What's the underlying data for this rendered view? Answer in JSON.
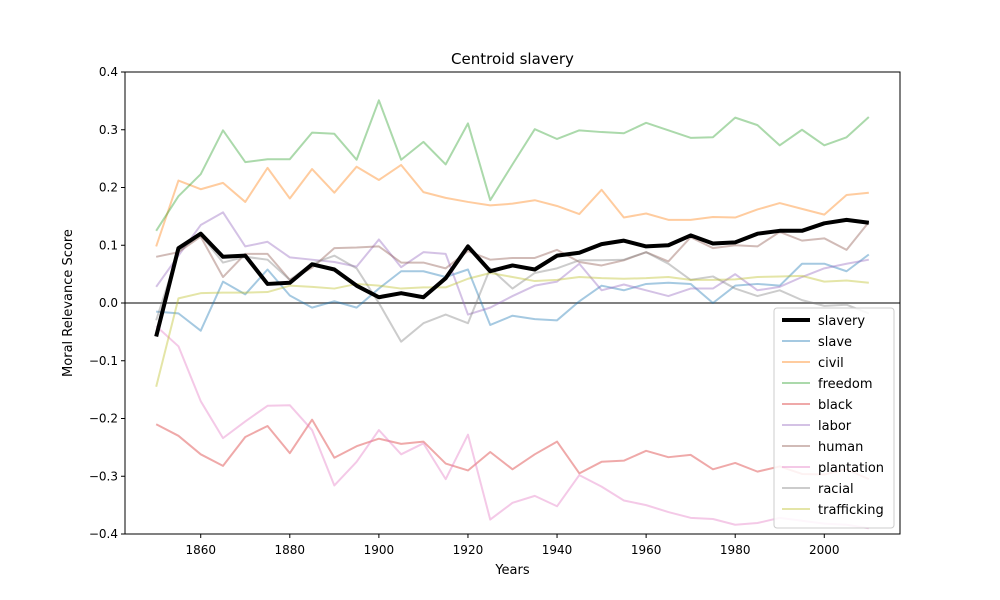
{
  "chart_data": {
    "type": "line",
    "title": "Centroid slavery",
    "xlabel": "Years",
    "ylabel": "Moral Relevance Score",
    "xlim": [
      1843,
      2017
    ],
    "ylim": [
      -0.4,
      0.4
    ],
    "xticks": [
      1860,
      1880,
      1900,
      1920,
      1940,
      1960,
      1980,
      2000
    ],
    "yticks": [
      -0.4,
      -0.3,
      -0.2,
      -0.1,
      0.0,
      0.1,
      0.2,
      0.3,
      0.4
    ],
    "ytick_labels": [
      "−0.4",
      "−0.3",
      "−0.2",
      "−0.1",
      "0.0",
      "0.1",
      "0.2",
      "0.3",
      "0.4"
    ],
    "grid": false,
    "legend_position": "lower-right",
    "zero_line": {
      "y": 0,
      "color": "#808080"
    },
    "x": [
      1850,
      1855,
      1860,
      1865,
      1870,
      1875,
      1880,
      1885,
      1890,
      1895,
      1900,
      1905,
      1910,
      1915,
      1920,
      1925,
      1930,
      1935,
      1940,
      1945,
      1950,
      1955,
      1960,
      1965,
      1970,
      1975,
      1980,
      1985,
      1990,
      1995,
      2000,
      2005,
      2010
    ],
    "series": [
      {
        "name": "slavery",
        "color": "#000000",
        "emphasis": true,
        "values": [
          -0.058,
          0.095,
          0.12,
          0.08,
          0.082,
          0.033,
          0.035,
          0.067,
          0.058,
          0.03,
          0.01,
          0.017,
          0.01,
          0.043,
          0.098,
          0.055,
          0.065,
          0.058,
          0.082,
          0.087,
          0.102,
          0.108,
          0.098,
          0.1,
          0.117,
          0.103,
          0.105,
          0.12,
          0.125,
          0.125,
          0.138,
          0.144,
          0.139
        ]
      },
      {
        "name": "slave",
        "color": "#1f77b4",
        "values": [
          -0.015,
          -0.018,
          -0.048,
          0.037,
          0.015,
          0.058,
          0.013,
          -0.008,
          0.003,
          -0.008,
          0.025,
          0.055,
          0.055,
          0.045,
          0.058,
          -0.038,
          -0.022,
          -0.028,
          -0.03,
          0.003,
          0.03,
          0.022,
          0.033,
          0.035,
          0.033,
          0.0,
          0.03,
          0.033,
          0.03,
          0.068,
          0.068,
          0.055,
          0.084
        ]
      },
      {
        "name": "civil",
        "color": "#ff7f0e",
        "values": [
          0.098,
          0.212,
          0.197,
          0.208,
          0.175,
          0.234,
          0.181,
          0.232,
          0.191,
          0.236,
          0.213,
          0.239,
          0.192,
          0.182,
          0.175,
          0.169,
          0.172,
          0.178,
          0.168,
          0.154,
          0.196,
          0.148,
          0.155,
          0.144,
          0.144,
          0.149,
          0.148,
          0.162,
          0.173,
          0.163,
          0.153,
          0.187,
          0.191
        ]
      },
      {
        "name": "freedom",
        "color": "#2ca02c",
        "values": [
          0.125,
          0.185,
          0.223,
          0.299,
          0.244,
          0.249,
          0.249,
          0.295,
          0.293,
          0.248,
          0.351,
          0.248,
          0.279,
          0.24,
          0.311,
          0.178,
          0.24,
          0.301,
          0.284,
          0.299,
          0.296,
          0.294,
          0.312,
          0.299,
          0.286,
          0.287,
          0.321,
          0.308,
          0.273,
          0.3,
          0.273,
          0.287,
          0.322
        ]
      },
      {
        "name": "black",
        "color": "#d62728",
        "values": [
          -0.21,
          -0.23,
          -0.262,
          -0.282,
          -0.232,
          -0.213,
          -0.26,
          -0.202,
          -0.268,
          -0.248,
          -0.235,
          -0.244,
          -0.24,
          -0.278,
          -0.29,
          -0.258,
          -0.288,
          -0.262,
          -0.24,
          -0.295,
          -0.275,
          -0.273,
          -0.256,
          -0.267,
          -0.263,
          -0.288,
          -0.277,
          -0.292,
          -0.283,
          -0.296,
          -0.297,
          -0.288,
          -0.305
        ]
      },
      {
        "name": "labor",
        "color": "#9467bd",
        "values": [
          0.028,
          0.082,
          0.135,
          0.157,
          0.098,
          0.106,
          0.079,
          0.075,
          0.071,
          0.063,
          0.11,
          0.062,
          0.088,
          0.085,
          -0.02,
          -0.008,
          0.012,
          0.03,
          0.037,
          0.068,
          0.022,
          0.032,
          0.022,
          0.012,
          0.025,
          0.025,
          0.05,
          0.022,
          0.028,
          0.045,
          0.06,
          0.068,
          0.075
        ]
      },
      {
        "name": "human",
        "color": "#8c564b",
        "values": [
          0.08,
          0.088,
          0.115,
          0.045,
          0.085,
          0.085,
          0.04,
          0.061,
          0.095,
          0.096,
          0.098,
          0.07,
          0.07,
          0.06,
          0.09,
          0.075,
          0.078,
          0.078,
          0.092,
          0.071,
          0.065,
          0.074,
          0.088,
          0.072,
          0.114,
          0.095,
          0.1,
          0.098,
          0.123,
          0.108,
          0.112,
          0.092,
          0.14
        ]
      },
      {
        "name": "plantation",
        "color": "#e377c2",
        "values": [
          -0.04,
          -0.075,
          -0.17,
          -0.234,
          -0.205,
          -0.178,
          -0.177,
          -0.22,
          -0.316,
          -0.275,
          -0.22,
          -0.262,
          -0.243,
          -0.305,
          -0.228,
          -0.375,
          -0.346,
          -0.334,
          -0.352,
          -0.298,
          -0.318,
          -0.342,
          -0.35,
          -0.362,
          -0.372,
          -0.374,
          -0.384,
          -0.381,
          -0.372,
          -0.377,
          -0.382,
          -0.384,
          -0.39
        ]
      },
      {
        "name": "racial",
        "color": "#7f7f7f",
        "values": [
          -0.03,
          0.09,
          0.118,
          0.07,
          0.08,
          0.075,
          0.04,
          0.068,
          0.082,
          0.06,
          0.0,
          -0.067,
          -0.035,
          -0.02,
          -0.035,
          0.06,
          0.025,
          0.052,
          0.06,
          0.074,
          0.074,
          0.075,
          0.088,
          0.068,
          0.04,
          0.046,
          0.025,
          0.012,
          0.022,
          0.005,
          -0.005,
          -0.003,
          -0.018
        ]
      },
      {
        "name": "trafficking",
        "color": "#bcbd22",
        "values": [
          -0.145,
          0.008,
          0.017,
          0.018,
          0.018,
          0.019,
          0.03,
          0.028,
          0.025,
          0.033,
          0.03,
          0.025,
          0.027,
          0.027,
          0.042,
          0.052,
          0.045,
          0.038,
          0.04,
          0.045,
          0.043,
          0.042,
          0.043,
          0.045,
          0.04,
          0.04,
          0.041,
          0.045,
          0.046,
          0.047,
          0.037,
          0.039,
          0.035
        ]
      }
    ]
  }
}
